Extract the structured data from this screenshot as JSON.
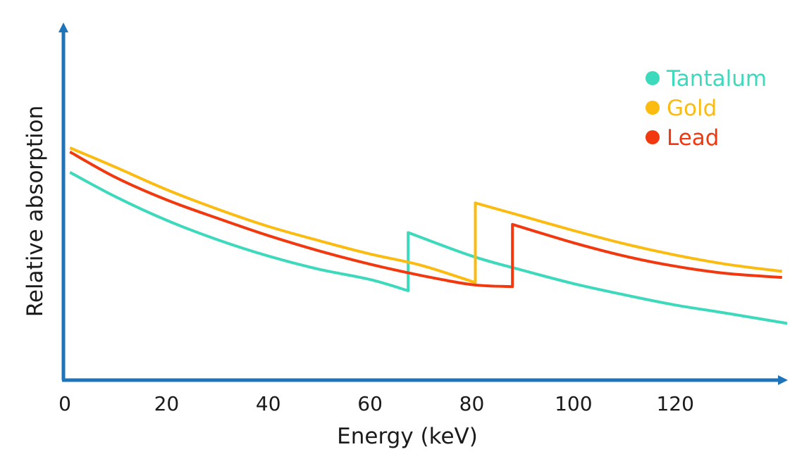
{
  "chart_data": {
    "type": "line",
    "title": "",
    "xlabel": "Energy (keV)",
    "ylabel": "Relative absorption",
    "xlim": [
      0,
      142
    ],
    "ylim": [
      0,
      1
    ],
    "xticks": [
      0,
      20,
      40,
      60,
      80,
      100,
      120
    ],
    "xtick_labels": [
      "0",
      "20",
      "40",
      "60",
      "80",
      "100",
      "120"
    ],
    "grid": false,
    "legend_position": "top-right",
    "colors": {
      "axis": "#1f73b8",
      "text": "#1a1a1a"
    },
    "series": [
      {
        "name": "Tantalum",
        "color": "#3dd9bd",
        "x": [
          1,
          10,
          20,
          30,
          40,
          50,
          60,
          67.5,
          67.5,
          80,
          90,
          100,
          110,
          120,
          130,
          142
        ],
        "y": [
          0.88,
          0.76,
          0.645,
          0.55,
          0.47,
          0.405,
          0.355,
          0.3,
          0.585,
          0.47,
          0.4,
          0.335,
          0.28,
          0.23,
          0.19,
          0.14
        ]
      },
      {
        "name": "Gold",
        "color": "#fbbb10",
        "x": [
          1,
          10,
          20,
          30,
          40,
          50,
          60,
          70,
          80.7,
          80.7,
          90,
          100,
          110,
          120,
          130,
          141
        ],
        "y": [
          1.0,
          0.905,
          0.795,
          0.7,
          0.615,
          0.545,
          0.48,
          0.425,
          0.34,
          0.73,
          0.665,
          0.595,
          0.53,
          0.475,
          0.43,
          0.395
        ]
      },
      {
        "name": "Lead",
        "color": "#f1380f",
        "x": [
          1,
          10,
          20,
          30,
          40,
          50,
          60,
          70,
          80,
          88,
          88,
          100,
          110,
          120,
          130,
          141
        ],
        "y": [
          0.98,
          0.855,
          0.745,
          0.655,
          0.57,
          0.495,
          0.43,
          0.375,
          0.33,
          0.32,
          0.625,
          0.535,
          0.47,
          0.42,
          0.385,
          0.365
        ]
      }
    ]
  }
}
